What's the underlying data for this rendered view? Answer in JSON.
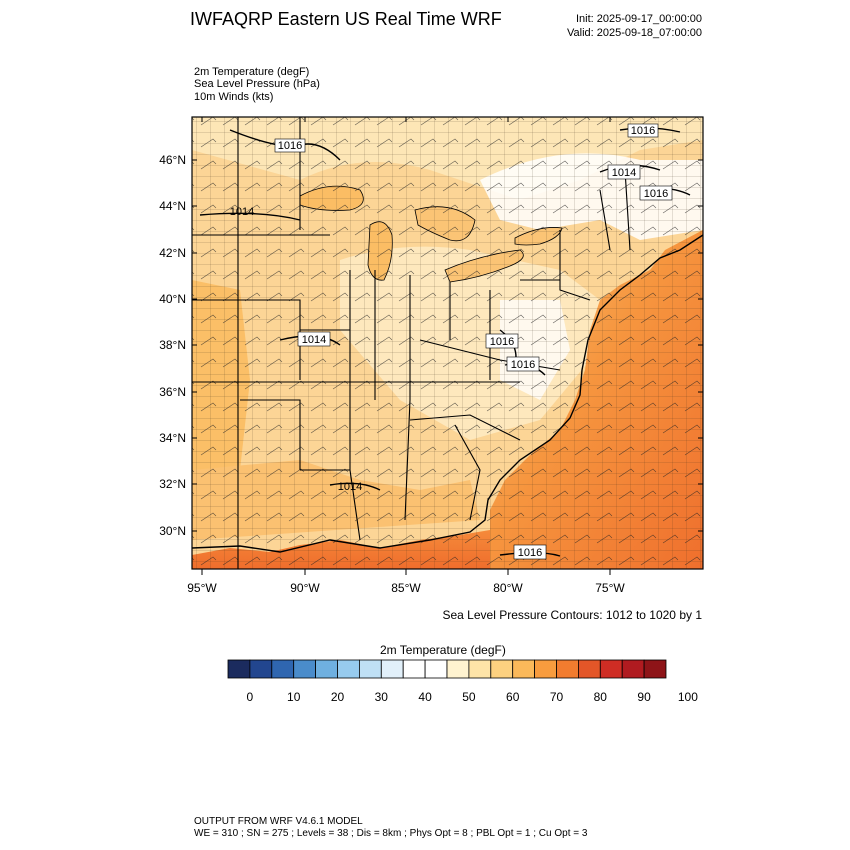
{
  "header": {
    "title": "IWFAQRP Eastern US Real Time WRF",
    "init": "Init: 2025-09-17_00:00:00",
    "valid": "Valid: 2025-09-18_07:00:00"
  },
  "fields": [
    "2m Temperature   (degF)",
    "Sea Level Pressure   (hPa)",
    "10m Winds   (kts)"
  ],
  "map": {
    "lat_labels": [
      "46°N",
      "44°N",
      "42°N",
      "40°N",
      "38°N",
      "36°N",
      "34°N",
      "32°N",
      "30°N"
    ],
    "lon_labels": [
      "95°W",
      "90°W",
      "85°W",
      "80°W",
      "75°W"
    ],
    "pressure_labels": [
      "1016",
      "1014",
      "1016",
      "1014",
      "1016",
      "1014",
      "1016",
      "1016",
      "1014",
      "1016"
    ],
    "contour_note": "Sea Level Pressure Contours: 1012 to 1020 by 1"
  },
  "colorbar": {
    "title": "2m Temperature  (degF)",
    "labels": [
      "0",
      "10",
      "20",
      "30",
      "40",
      "50",
      "60",
      "70",
      "80",
      "90",
      "100"
    ],
    "colors": [
      "#1b2b5e",
      "#22468f",
      "#2f66b0",
      "#4a8ccb",
      "#6fb0e0",
      "#97cbee",
      "#bfe0f5",
      "#e2f0fa",
      "#ffffff",
      "#ffffff",
      "#fff3d0",
      "#fee4a8",
      "#fdd180",
      "#fbb95a",
      "#f89c3e",
      "#f27c2f",
      "#e35628",
      "#cf2d24",
      "#b01b20",
      "#8e1418"
    ]
  },
  "footer": {
    "line1": "OUTPUT FROM WRF V4.6.1 MODEL",
    "line2": "WE = 310 ; SN = 275 ; Levels = 38 ; Dis = 8km ; Phys Opt = 8 ; PBL Opt = 1 ; Cu Opt = 3"
  }
}
